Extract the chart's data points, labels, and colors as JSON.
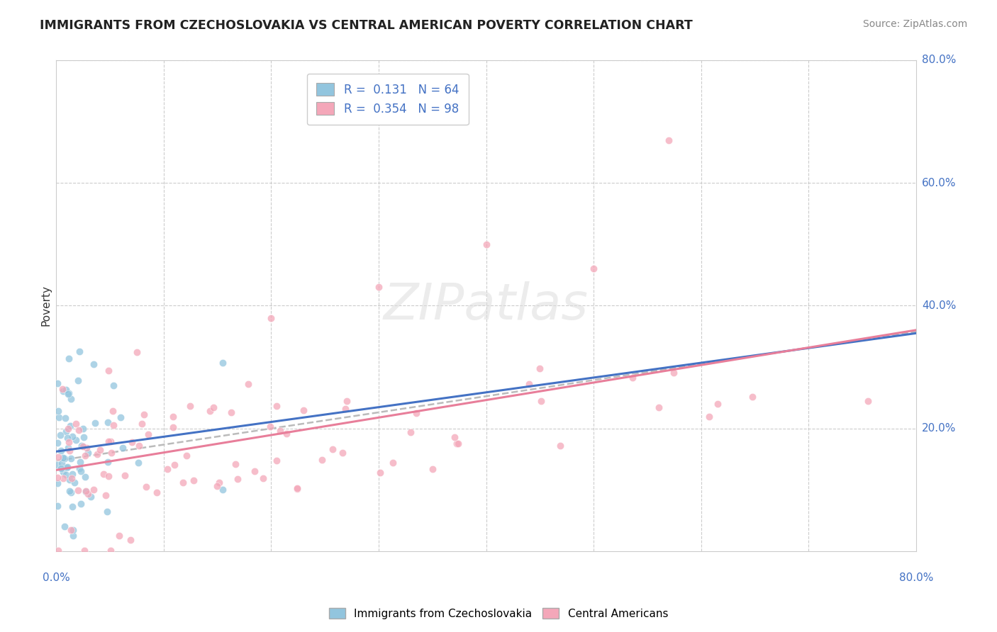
{
  "title": "IMMIGRANTS FROM CZECHOSLOVAKIA VS CENTRAL AMERICAN POVERTY CORRELATION CHART",
  "source": "Source: ZipAtlas.com",
  "ylabel": "Poverty",
  "legend_label1": "Immigrants from Czechoslovakia",
  "legend_label2": "Central Americans",
  "color_blue": "#92C5DE",
  "color_pink": "#F4A7B9",
  "color_blue_line": "#4472C4",
  "color_pink_line": "#E87E9A",
  "color_dashed": "#BBBBBB",
  "xlim": [
    0.0,
    0.8
  ],
  "ylim": [
    0.0,
    0.8
  ],
  "R1": 0.131,
  "N1": 64,
  "R2": 0.354,
  "N2": 98,
  "ytick_labels": [
    "80.0%",
    "60.0%",
    "40.0%",
    "20.0%"
  ],
  "ytick_vals": [
    0.8,
    0.6,
    0.4,
    0.2
  ],
  "watermark": "ZIPatlas"
}
